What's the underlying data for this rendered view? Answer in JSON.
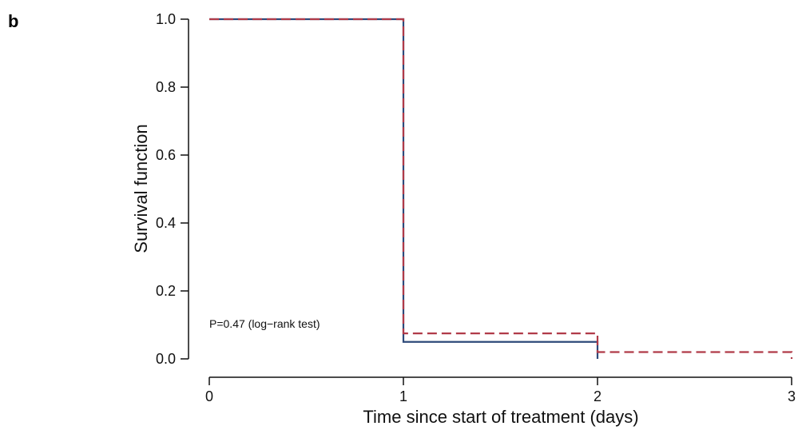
{
  "panel_label": "b",
  "chart_data": {
    "type": "line",
    "subtype": "kaplan-meier step",
    "title": "",
    "xlabel": "Time since start of treatment (days)",
    "ylabel": "Survival function",
    "xlim": [
      0,
      3
    ],
    "ylim": [
      0,
      1
    ],
    "xticks": [
      0,
      1,
      2,
      3
    ],
    "xtick_labels": [
      "0",
      "1",
      "2",
      "3"
    ],
    "yticks": [
      0,
      0.2,
      0.4,
      0.6,
      0.8,
      1.0
    ],
    "ytick_labels": [
      "0.0",
      "0.2",
      "0.4",
      "0.6",
      "0.8",
      "1.0"
    ],
    "grid": false,
    "legend": "none",
    "annotation": "P=0.47 (log−rank test)",
    "series": [
      {
        "color": "#2e4a7a",
        "style": "solid",
        "x": [
          0,
          1,
          1,
          2,
          2
        ],
        "y": [
          1.0,
          1.0,
          0.05,
          0.05,
          0.0
        ]
      },
      {
        "color": "#b03a48",
        "style": "dashed",
        "x": [
          0,
          1,
          1,
          2,
          2,
          3,
          3
        ],
        "y": [
          1.0,
          1.0,
          0.075,
          0.075,
          0.02,
          0.02,
          0.0
        ]
      }
    ]
  }
}
